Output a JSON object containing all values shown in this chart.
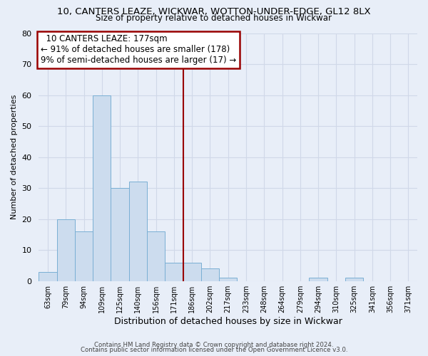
{
  "title_line1": "10, CANTERS LEAZE, WICKWAR, WOTTON-UNDER-EDGE, GL12 8LX",
  "title_line2": "Size of property relative to detached houses in Wickwar",
  "xlabel": "Distribution of detached houses by size in Wickwar",
  "ylabel": "Number of detached properties",
  "bar_labels": [
    "63sqm",
    "79sqm",
    "94sqm",
    "109sqm",
    "125sqm",
    "140sqm",
    "156sqm",
    "171sqm",
    "186sqm",
    "202sqm",
    "217sqm",
    "233sqm",
    "248sqm",
    "264sqm",
    "279sqm",
    "294sqm",
    "310sqm",
    "325sqm",
    "341sqm",
    "356sqm",
    "371sqm"
  ],
  "bar_values": [
    3,
    20,
    16,
    60,
    30,
    32,
    16,
    6,
    6,
    4,
    1,
    0,
    0,
    0,
    0,
    1,
    0,
    1,
    0,
    0,
    0
  ],
  "bar_color": "#ccdcee",
  "bar_edge_color": "#7aafd4",
  "reference_line_x": 7.5,
  "annotation_title": "10 CANTERS LEAZE: 177sqm",
  "annotation_line1": "← 91% of detached houses are smaller (178)",
  "annotation_line2": "9% of semi-detached houses are larger (17) →",
  "ylim": [
    0,
    80
  ],
  "yticks": [
    0,
    10,
    20,
    30,
    40,
    50,
    60,
    70,
    80
  ],
  "footer_line1": "Contains HM Land Registry data © Crown copyright and database right 2024.",
  "footer_line2": "Contains public sector information licensed under the Open Government Licence v3.0.",
  "bg_color": "#e8eef8",
  "plot_bg_color": "#e8eef8",
  "grid_color": "#d0d8e8",
  "annotation_box_color": "#ffffff",
  "annotation_box_edge": "#990000",
  "ref_line_color": "#990000"
}
